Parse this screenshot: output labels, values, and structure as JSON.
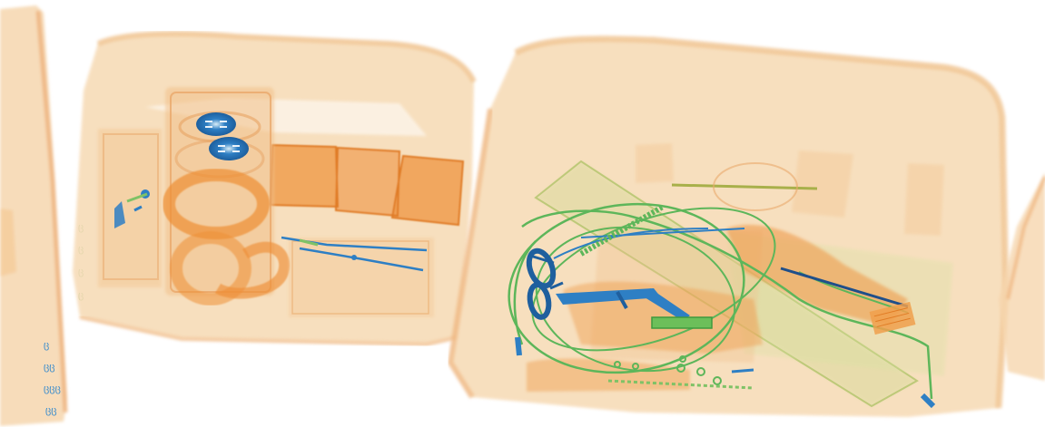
{
  "scan": {
    "type": "x-ray baggage scan",
    "material_colors": {
      "organic_light": "#f5d2a8",
      "organic_medium": "#f0b070",
      "organic_dense": "#ee8f35",
      "inorganic": "#7fc266",
      "metal": "#2e7fc4",
      "background": "#ffffff"
    },
    "objects": [
      {
        "id": "left-partial-case",
        "icon": "case-edge"
      },
      {
        "id": "bag-1",
        "icon": "carry-on-bag"
      },
      {
        "id": "bag-1-canister",
        "icon": "cylinder-container"
      },
      {
        "id": "bag-1-tape-roll",
        "icon": "tape-roll"
      },
      {
        "id": "bag-1-boxes",
        "icon": "orange-boxes"
      },
      {
        "id": "bag-1-cable",
        "icon": "wire-cable"
      },
      {
        "id": "bag-2",
        "icon": "carry-on-bag"
      },
      {
        "id": "bag-2-cables",
        "icon": "coiled-cables"
      },
      {
        "id": "bag-2-glasses",
        "icon": "eyeglasses"
      },
      {
        "id": "bag-2-tool",
        "icon": "metal-tool"
      },
      {
        "id": "bag-2-board",
        "icon": "circuit-board"
      },
      {
        "id": "right-partial-case",
        "icon": "case-edge"
      }
    ]
  }
}
